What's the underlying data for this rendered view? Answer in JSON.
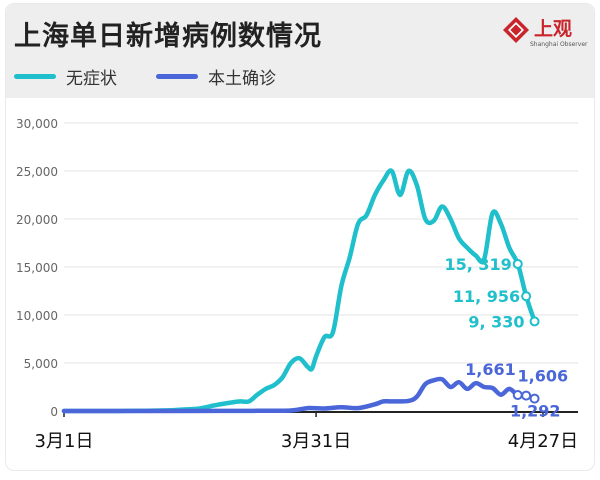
{
  "title": "上海单日新增病例数情况",
  "logo": {
    "text": "上观",
    "subtitle": "Shanghai Observer",
    "color": "#c8262c"
  },
  "colors": {
    "asymptomatic": "#1fbfcc",
    "local": "#4a66d8",
    "axis": "#222222",
    "grid": "#e3e3e3"
  },
  "chart_data": {
    "type": "line",
    "title": "上海单日新增病例数情况",
    "xlabel": "",
    "ylabel": "",
    "ylim": [
      0,
      30000
    ],
    "yticks": [
      0,
      5000,
      10000,
      15000,
      20000,
      25000,
      30000
    ],
    "ytick_labels": [
      "0",
      "5,000",
      "10,000",
      "15,000",
      "20,000",
      "25,000",
      "30,000"
    ],
    "xticks": [
      1,
      31,
      58
    ],
    "xtick_labels": [
      "3月1日",
      "3月31日",
      "4月27日"
    ],
    "grid": "horizontal",
    "legend_position": "top-left",
    "series": [
      {
        "name": "无症状",
        "color": "#1fbfcc",
        "points": [
          [
            1,
            0
          ],
          [
            5,
            0
          ],
          [
            10,
            20
          ],
          [
            13,
            60
          ],
          [
            15,
            150
          ],
          [
            17,
            250
          ],
          [
            19,
            600
          ],
          [
            21,
            900
          ],
          [
            22,
            1000
          ],
          [
            23,
            1000
          ],
          [
            24,
            1700
          ],
          [
            25,
            2300
          ],
          [
            26,
            2700
          ],
          [
            27,
            3500
          ],
          [
            28,
            5000
          ],
          [
            29,
            5500
          ],
          [
            30,
            4600
          ],
          [
            30.5,
            4400
          ],
          [
            31,
            5700
          ],
          [
            32,
            7700
          ],
          [
            33,
            8200
          ],
          [
            34,
            13000
          ],
          [
            35,
            16000
          ],
          [
            36,
            19500
          ],
          [
            37,
            20400
          ],
          [
            38,
            22500
          ],
          [
            39,
            24000
          ],
          [
            40,
            25000
          ],
          [
            41,
            22500
          ],
          [
            42,
            25000
          ],
          [
            43,
            23500
          ],
          [
            44,
            20000
          ],
          [
            45,
            19800
          ],
          [
            46,
            21300
          ],
          [
            47,
            20000
          ],
          [
            48,
            18000
          ],
          [
            49,
            17000
          ],
          [
            50,
            16200
          ],
          [
            51,
            15800
          ],
          [
            52,
            20600
          ],
          [
            53,
            19500
          ],
          [
            54,
            17000
          ],
          [
            55,
            15319
          ],
          [
            56,
            11956
          ],
          [
            57,
            9330
          ]
        ]
      },
      {
        "name": "本土确诊",
        "color": "#4a66d8",
        "points": [
          [
            1,
            0
          ],
          [
            10,
            0
          ],
          [
            20,
            10
          ],
          [
            24,
            20
          ],
          [
            28,
            50
          ],
          [
            30,
            300
          ],
          [
            32,
            260
          ],
          [
            34,
            400
          ],
          [
            36,
            300
          ],
          [
            38,
            700
          ],
          [
            39,
            1000
          ],
          [
            40,
            1000
          ],
          [
            42,
            1050
          ],
          [
            43,
            1500
          ],
          [
            44,
            2800
          ],
          [
            45,
            3200
          ],
          [
            46,
            3300
          ],
          [
            47,
            2500
          ],
          [
            48,
            3000
          ],
          [
            49,
            2300
          ],
          [
            50,
            2900
          ],
          [
            51,
            2500
          ],
          [
            52,
            2400
          ],
          [
            53,
            1700
          ],
          [
            54,
            2300
          ],
          [
            55,
            1661
          ],
          [
            56,
            1606
          ],
          [
            57,
            1292
          ]
        ]
      }
    ],
    "data_labels": [
      {
        "series": "无症状",
        "x": 55,
        "y": 15319,
        "label": "15, 319"
      },
      {
        "series": "无症状",
        "x": 56,
        "y": 11956,
        "label": "11, 956"
      },
      {
        "series": "无症状",
        "x": 57,
        "y": 9330,
        "label": "9, 330"
      },
      {
        "series": "本土确诊",
        "x": 55,
        "y": 1661,
        "label": "1,661"
      },
      {
        "series": "本土确诊",
        "x": 56,
        "y": 1606,
        "label": "1,606"
      },
      {
        "series": "本土确诊",
        "x": 57,
        "y": 1292,
        "label": "1,292"
      }
    ]
  }
}
